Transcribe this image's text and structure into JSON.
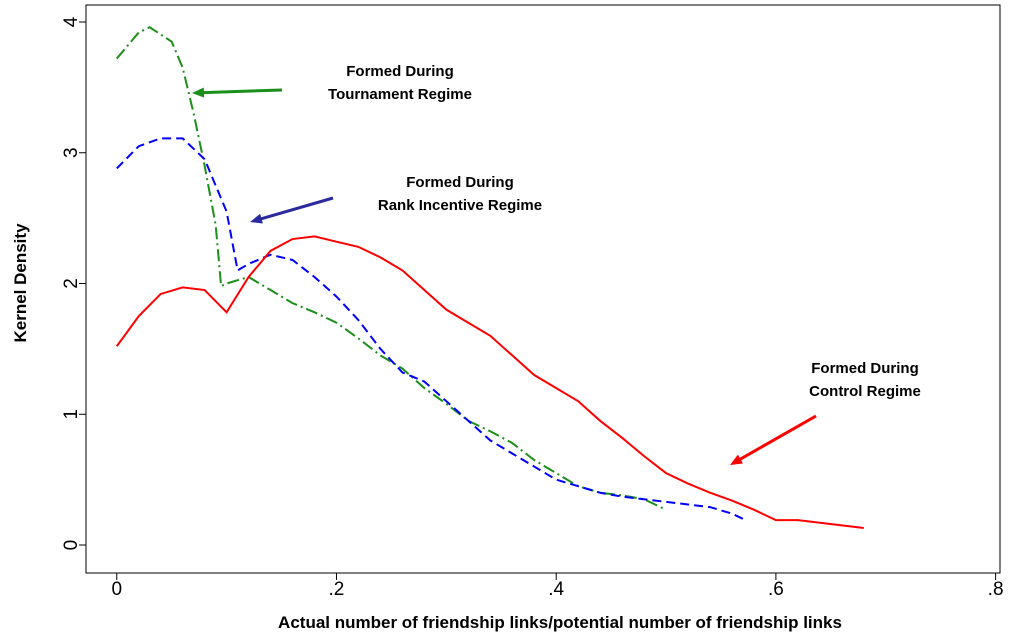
{
  "chart_data": {
    "type": "line",
    "xlabel": "Actual number of friendship links/potential number of friendship links",
    "ylabel": "Kernel Density",
    "xlim": [
      -0.028,
      0.804
    ],
    "ylim": [
      -0.214,
      4.13
    ],
    "xticks": [
      {
        "value": 0,
        "label": "0"
      },
      {
        "value": 0.2,
        "label": ".2"
      },
      {
        "value": 0.4,
        "label": ".4"
      },
      {
        "value": 0.6,
        "label": ".6"
      },
      {
        "value": 0.8,
        "label": ".8"
      }
    ],
    "yticks": [
      0,
      1,
      2,
      3,
      4
    ],
    "series": [
      {
        "label": [
          "Formed During",
          "Tournament Regime"
        ],
        "color": "#1a8f1a",
        "style": "dashdot",
        "x": [
          0,
          0.02,
          0.03,
          0.05,
          0.06,
          0.07,
          0.08,
          0.09,
          0.095,
          0.1,
          0.12,
          0.14,
          0.16,
          0.18,
          0.2,
          0.22,
          0.24,
          0.26,
          0.28,
          0.3,
          0.32,
          0.34,
          0.36,
          0.38,
          0.4,
          0.42,
          0.44,
          0.46,
          0.48,
          0.5
        ],
        "values": [
          3.72,
          3.92,
          3.96,
          3.85,
          3.65,
          3.3,
          2.9,
          2.45,
          1.98,
          2.0,
          2.05,
          1.95,
          1.85,
          1.78,
          1.7,
          1.58,
          1.45,
          1.35,
          1.2,
          1.08,
          0.95,
          0.87,
          0.78,
          0.65,
          0.55,
          0.45,
          0.4,
          0.38,
          0.35,
          0.27
        ]
      },
      {
        "label": [
          "Formed During",
          "Rank Incentive Regime"
        ],
        "color": "#0000ff",
        "style": "dashed",
        "x": [
          0,
          0.02,
          0.04,
          0.06,
          0.08,
          0.1,
          0.11,
          0.12,
          0.14,
          0.16,
          0.18,
          0.2,
          0.22,
          0.24,
          0.26,
          0.28,
          0.3,
          0.32,
          0.34,
          0.36,
          0.38,
          0.4,
          0.42,
          0.44,
          0.46,
          0.48,
          0.5,
          0.52,
          0.54,
          0.56,
          0.57
        ],
        "values": [
          2.88,
          3.05,
          3.11,
          3.11,
          2.95,
          2.55,
          2.1,
          2.15,
          2.22,
          2.18,
          2.05,
          1.9,
          1.72,
          1.5,
          1.32,
          1.25,
          1.1,
          0.95,
          0.8,
          0.7,
          0.6,
          0.5,
          0.45,
          0.4,
          0.37,
          0.35,
          0.33,
          0.31,
          0.29,
          0.24,
          0.2
        ]
      },
      {
        "label": [
          "Formed During",
          "Control Regime"
        ],
        "color": "#ff0000",
        "style": "solid",
        "x": [
          0,
          0.02,
          0.04,
          0.06,
          0.08,
          0.1,
          0.12,
          0.14,
          0.16,
          0.18,
          0.2,
          0.22,
          0.24,
          0.26,
          0.28,
          0.3,
          0.32,
          0.34,
          0.36,
          0.38,
          0.4,
          0.42,
          0.44,
          0.46,
          0.48,
          0.5,
          0.52,
          0.54,
          0.56,
          0.58,
          0.6,
          0.62,
          0.64,
          0.66,
          0.68
        ],
        "values": [
          1.52,
          1.75,
          1.92,
          1.97,
          1.95,
          1.78,
          2.05,
          2.25,
          2.34,
          2.36,
          2.32,
          2.28,
          2.2,
          2.1,
          1.95,
          1.8,
          1.7,
          1.6,
          1.45,
          1.3,
          1.2,
          1.1,
          0.95,
          0.82,
          0.68,
          0.55,
          0.47,
          0.4,
          0.34,
          0.27,
          0.19,
          0.19,
          0.17,
          0.15,
          0.13
        ]
      }
    ]
  }
}
